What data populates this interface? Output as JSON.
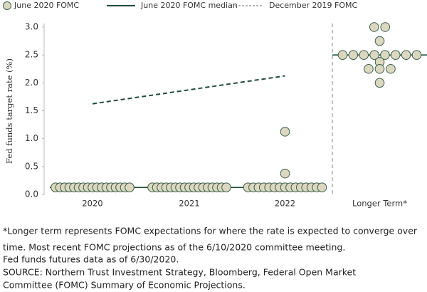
{
  "chart_data": {
    "type": "dot",
    "legend": "top",
    "ylabel": "Fed funds target rate (%)",
    "categories": [
      "2020",
      "2021",
      "2022",
      "Longer Term*"
    ],
    "ylim": [
      0,
      3
    ],
    "yticks": [
      {
        "value": 0,
        "label": "0.0"
      },
      0.5,
      {
        "value": 1,
        "label": "1.0"
      },
      1.5,
      {
        "value": 2,
        "label": "2.0"
      },
      2.5,
      {
        "value": 3,
        "label": "3.0"
      }
    ],
    "series": [
      {
        "name": "June 2020 FOMC",
        "kind": "dots",
        "color": "#dcd8c0",
        "values": [
          [
            0.125,
            0.125,
            0.125,
            0.125,
            0.125,
            0.125,
            0.125,
            0.125,
            0.125,
            0.125,
            0.125,
            0.125,
            0.125,
            0.125,
            0.125,
            0.125,
            0.125
          ],
          [
            0.125,
            0.125,
            0.125,
            0.125,
            0.125,
            0.125,
            0.125,
            0.125,
            0.125,
            0.125,
            0.125,
            0.125,
            0.125,
            0.125,
            0.125,
            0.125,
            0.125
          ],
          [
            0.125,
            0.125,
            0.125,
            0.125,
            0.125,
            0.125,
            0.125,
            0.125,
            0.125,
            0.125,
            0.125,
            0.125,
            0.125,
            0.125,
            0.125,
            0.375,
            1.125
          ],
          [
            3,
            3,
            2.75,
            2.5,
            2.5,
            2.5,
            2.5,
            2.5,
            2.5,
            2.5,
            2.5,
            2.375,
            2.25,
            2.25,
            2.25,
            2
          ]
        ]
      },
      {
        "name": "June 2020 FOMC median",
        "kind": "median",
        "color": "#1e4d3a",
        "values": [
          0.125,
          0.125,
          0.125,
          2.5
        ]
      },
      {
        "name": "December 2019 FOMC",
        "kind": "dashed",
        "color": "#1e4d3a",
        "values": [
          1.625,
          1.875,
          2.125,
          null
        ]
      }
    ],
    "notes": [
      "*Longer term represents FOMC expectations for where the rate is expected to converge over",
      "time. Most recent FOMC projections as of the 6/10/2020 committee meeting.",
      "Fed funds futures data as of 6/30/2020.",
      "SOURCE: Northern Trust Investment Strategy, Bloomberg, Federal Open Market",
      "Committee (FOMC) Summary of Economic Projections."
    ]
  }
}
